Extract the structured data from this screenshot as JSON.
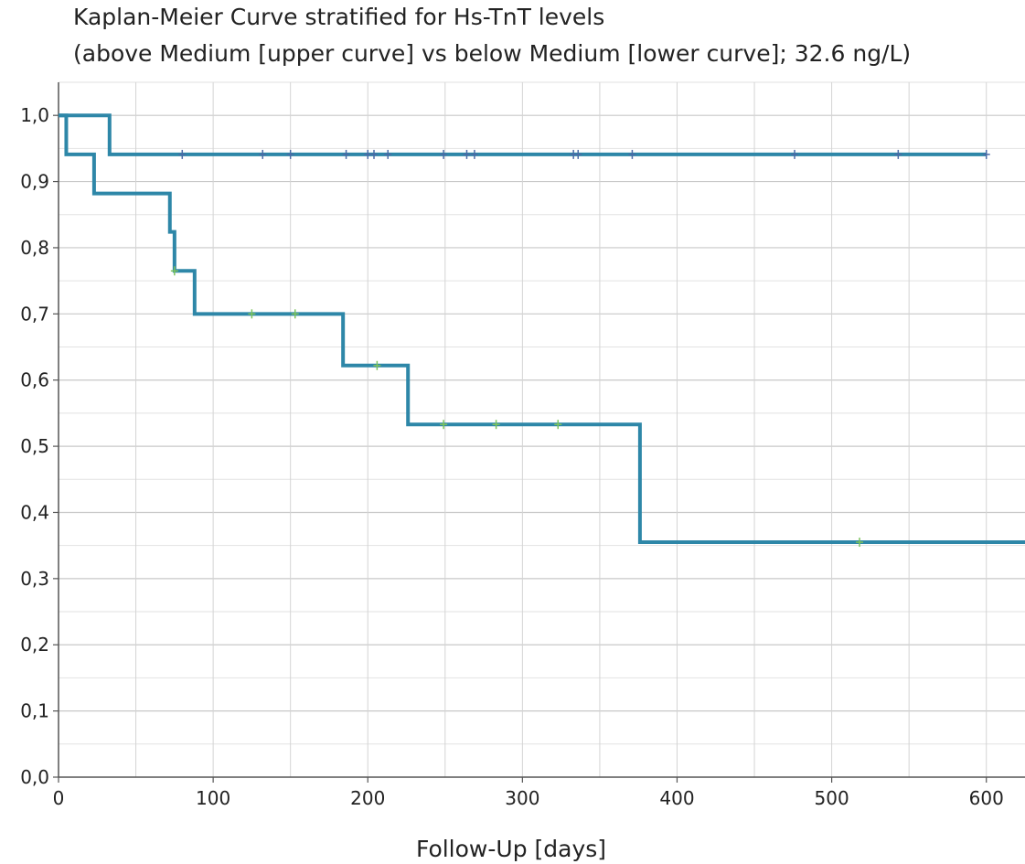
{
  "title": "Kaplan-Meier Curve stratified for Hs-TnT levels",
  "subtitle": "(above Medium [upper curve] vs below Medium [lower curve]; 32.6 ng/L)",
  "chart_data": {
    "type": "line",
    "subtype": "kaplan-meier-step",
    "title": "Kaplan-Meier Curve stratified for Hs-TnT levels",
    "subtitle": "(above Medium [upper curve] vs below Medium [lower curve]; 32.6 ng/L)",
    "xlabel": "Follow-Up [days]",
    "ylabel": "",
    "xlim": [
      0,
      625
    ],
    "ylim": [
      0,
      1.05
    ],
    "x_ticks": [
      0,
      100,
      200,
      300,
      400,
      500,
      600
    ],
    "x_tick_labels": [
      "0",
      "100",
      "200",
      "300",
      "400",
      "500",
      "600"
    ],
    "y_ticks": [
      0,
      0.1,
      0.2,
      0.3,
      0.4,
      0.5,
      0.6,
      0.7,
      0.8,
      0.9,
      1.0
    ],
    "y_tick_labels": [
      "0,0",
      "0,1",
      "0,2",
      "0,3",
      "0,4",
      "0,5",
      "0,6",
      "0,7",
      "0,8",
      "0,9",
      "1,0"
    ],
    "grid": true,
    "legend": "none",
    "series": [
      {
        "curve": "upper",
        "color": "#2e87a8",
        "censor_color": "#4a6aa6",
        "steps": [
          [
            0,
            1.0
          ],
          [
            33,
            0.941
          ],
          [
            600,
            0.941
          ]
        ],
        "censored": [
          {
            "x": 80,
            "y": 0.941
          },
          {
            "x": 132,
            "y": 0.941
          },
          {
            "x": 150,
            "y": 0.941
          },
          {
            "x": 186,
            "y": 0.941
          },
          {
            "x": 200,
            "y": 0.941
          },
          {
            "x": 204,
            "y": 0.941
          },
          {
            "x": 213,
            "y": 0.941
          },
          {
            "x": 249,
            "y": 0.941
          },
          {
            "x": 264,
            "y": 0.941
          },
          {
            "x": 269,
            "y": 0.941
          },
          {
            "x": 333,
            "y": 0.941
          },
          {
            "x": 336,
            "y": 0.941
          },
          {
            "x": 371,
            "y": 0.941
          },
          {
            "x": 476,
            "y": 0.941
          },
          {
            "x": 543,
            "y": 0.941
          },
          {
            "x": 600,
            "y": 0.941
          }
        ]
      },
      {
        "curve": "lower",
        "color": "#2e87a8",
        "censor_color": "#7cc35c",
        "steps": [
          [
            0,
            1.0
          ],
          [
            5,
            0.941
          ],
          [
            23,
            0.882
          ],
          [
            72,
            0.824
          ],
          [
            75,
            0.765
          ],
          [
            88,
            0.7
          ],
          [
            184,
            0.622
          ],
          [
            226,
            0.533
          ],
          [
            376,
            0.355
          ],
          [
            625,
            0.355
          ]
        ],
        "censored": [
          {
            "x": 75,
            "y": 0.765
          },
          {
            "x": 125,
            "y": 0.7
          },
          {
            "x": 153,
            "y": 0.7
          },
          {
            "x": 206,
            "y": 0.622
          },
          {
            "x": 249,
            "y": 0.533
          },
          {
            "x": 283,
            "y": 0.533
          },
          {
            "x": 323,
            "y": 0.533
          },
          {
            "x": 518,
            "y": 0.355
          }
        ]
      }
    ]
  }
}
